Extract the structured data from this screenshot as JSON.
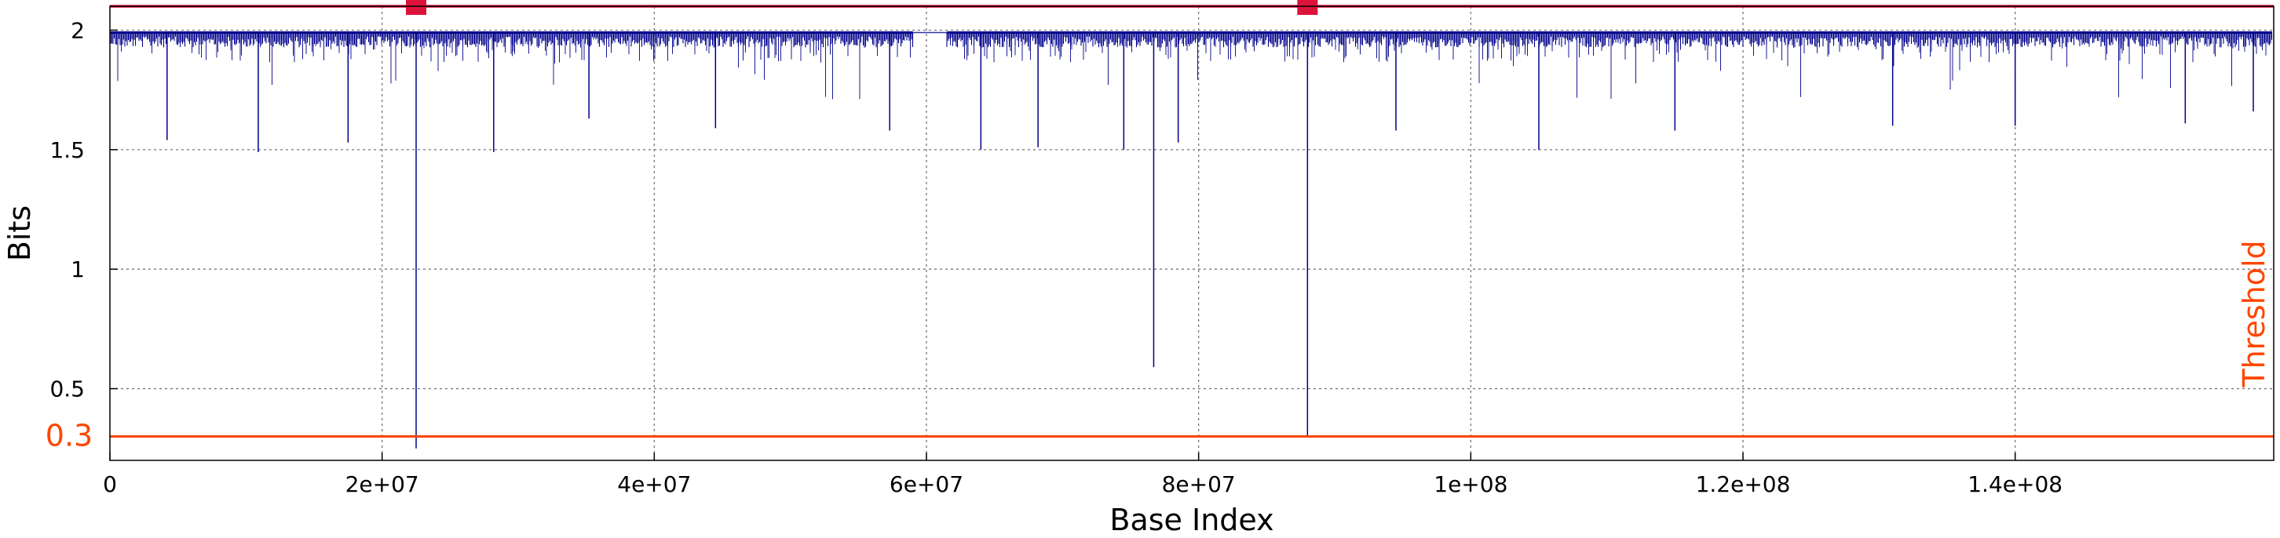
{
  "chart_data": {
    "type": "line",
    "xlabel": "Base Index",
    "ylabel": "Bits",
    "xlim": [
      0,
      159000000
    ],
    "ylim": [
      0.2,
      2.1
    ],
    "x_ticks": [
      {
        "value": 0,
        "label": "0"
      },
      {
        "value": 20000000,
        "label": "2e+07"
      },
      {
        "value": 40000000,
        "label": "4e+07"
      },
      {
        "value": 60000000,
        "label": "6e+07"
      },
      {
        "value": 80000000,
        "label": "8e+07"
      },
      {
        "value": 100000000,
        "label": "1e+08"
      },
      {
        "value": 120000000,
        "label": "1.2e+08"
      },
      {
        "value": 140000000,
        "label": "1.4e+08"
      }
    ],
    "y_ticks": [
      {
        "value": 0.5,
        "label": "0.5"
      },
      {
        "value": 1,
        "label": "1"
      },
      {
        "value": 1.5,
        "label": "1.5"
      },
      {
        "value": 2,
        "label": "2"
      }
    ],
    "grid": true,
    "series": [
      {
        "color": "#00008b",
        "baseline": 1.99,
        "gap": [
          59000000,
          61500000
        ],
        "dips": [
          {
            "x": 4200000,
            "y": 1.54
          },
          {
            "x": 10900000,
            "y": 1.49
          },
          {
            "x": 17500000,
            "y": 1.53
          },
          {
            "x": 22500000,
            "y": 0.25
          },
          {
            "x": 28200000,
            "y": 1.49
          },
          {
            "x": 35200000,
            "y": 1.63
          },
          {
            "x": 44500000,
            "y": 1.59
          },
          {
            "x": 57300000,
            "y": 1.58
          },
          {
            "x": 64000000,
            "y": 1.5
          },
          {
            "x": 68200000,
            "y": 1.51
          },
          {
            "x": 74500000,
            "y": 1.5
          },
          {
            "x": 76700000,
            "y": 0.59
          },
          {
            "x": 78500000,
            "y": 1.53
          },
          {
            "x": 88000000,
            "y": 0.3
          },
          {
            "x": 94500000,
            "y": 1.58
          },
          {
            "x": 105000000,
            "y": 1.5
          },
          {
            "x": 115000000,
            "y": 1.58
          },
          {
            "x": 131000000,
            "y": 1.6
          },
          {
            "x": 140000000,
            "y": 1.6
          },
          {
            "x": 152500000,
            "y": 1.61
          },
          {
            "x": 157500000,
            "y": 1.66
          }
        ]
      }
    ],
    "top_line": {
      "y": 2.1,
      "color": "#dc143c"
    },
    "markers": [
      {
        "x": 22500000,
        "y": 2.1,
        "color": "#dc143c"
      },
      {
        "x": 88000000,
        "y": 2.1,
        "color": "#dc143c"
      }
    ],
    "threshold": {
      "value": 0.3,
      "value_label": "0.3",
      "label": "Threshold",
      "color": "#ff4500"
    }
  }
}
